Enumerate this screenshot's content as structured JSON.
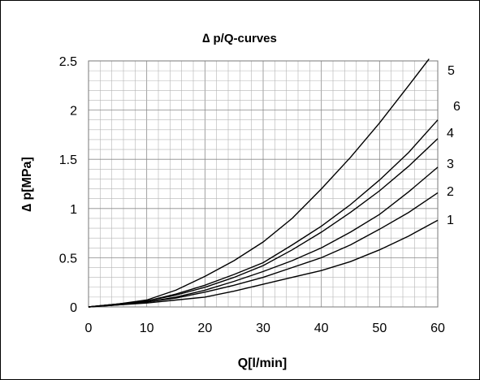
{
  "chart_data": {
    "type": "line",
    "title": "∆ p/Q-curves",
    "xlabel": "Q[l/min]",
    "ylabel": "∆ p[MPa]",
    "xlim": [
      0,
      60
    ],
    "ylim": [
      0,
      2.5
    ],
    "xticks": [
      0,
      10,
      20,
      30,
      40,
      50,
      60
    ],
    "yticks": [
      0,
      0.5,
      1,
      1.5,
      2,
      2.5
    ],
    "xtick_labels": [
      "0",
      "10",
      "20",
      "30",
      "40",
      "50",
      "60"
    ],
    "ytick_labels": [
      "0",
      "0.5",
      "1",
      "1.5",
      "2",
      "2.5"
    ],
    "grid": true,
    "series": [
      {
        "name": "5",
        "x": [
          0,
          5,
          10,
          15,
          20,
          25,
          30,
          35,
          40,
          45,
          50,
          55,
          58.5
        ],
        "y": [
          0,
          0.03,
          0.07,
          0.17,
          0.31,
          0.47,
          0.66,
          0.9,
          1.2,
          1.52,
          1.87,
          2.25,
          2.52
        ]
      },
      {
        "name": "6",
        "x": [
          0,
          5,
          10,
          15,
          20,
          25,
          30,
          35,
          40,
          45,
          50,
          55,
          60
        ],
        "y": [
          0,
          0.03,
          0.06,
          0.13,
          0.22,
          0.33,
          0.45,
          0.63,
          0.82,
          1.04,
          1.29,
          1.57,
          1.9
        ]
      },
      {
        "name": "4",
        "x": [
          0,
          5,
          10,
          15,
          20,
          25,
          30,
          35,
          40,
          45,
          50,
          55,
          60
        ],
        "y": [
          0,
          0.03,
          0.06,
          0.12,
          0.2,
          0.3,
          0.42,
          0.58,
          0.76,
          0.96,
          1.18,
          1.43,
          1.71
        ]
      },
      {
        "name": "3",
        "x": [
          0,
          5,
          10,
          15,
          20,
          25,
          30,
          35,
          40,
          45,
          50,
          55,
          60
        ],
        "y": [
          0,
          0.025,
          0.05,
          0.1,
          0.17,
          0.26,
          0.36,
          0.47,
          0.6,
          0.76,
          0.94,
          1.17,
          1.42
        ]
      },
      {
        "name": "2",
        "x": [
          0,
          5,
          10,
          15,
          20,
          25,
          30,
          35,
          40,
          45,
          50,
          55,
          60
        ],
        "y": [
          0,
          0.02,
          0.05,
          0.09,
          0.15,
          0.22,
          0.3,
          0.4,
          0.5,
          0.63,
          0.79,
          0.96,
          1.16
        ]
      },
      {
        "name": "1",
        "x": [
          0,
          5,
          10,
          15,
          20,
          25,
          30,
          35,
          40,
          45,
          50,
          55,
          60
        ],
        "y": [
          0,
          0.02,
          0.04,
          0.07,
          0.1,
          0.16,
          0.23,
          0.3,
          0.37,
          0.46,
          0.58,
          0.72,
          0.88
        ]
      }
    ],
    "curve_labels": [
      "5",
      "6",
      "4",
      "3",
      "2",
      "1"
    ]
  }
}
